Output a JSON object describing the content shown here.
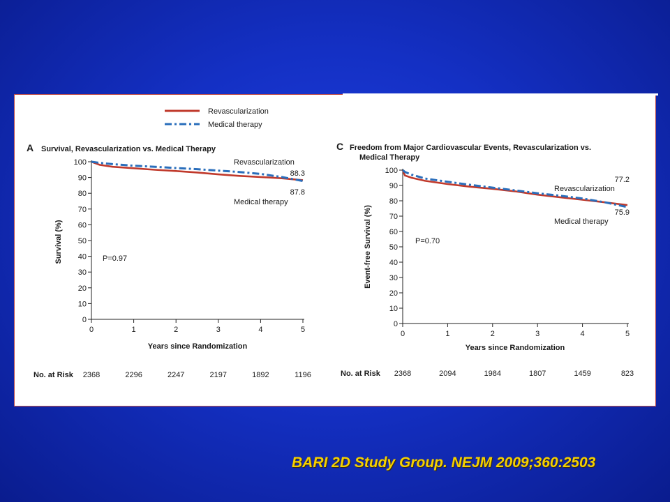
{
  "colors": {
    "revascularization": "#c0392b",
    "medical_therapy": "#2a6ebb",
    "background": "#1430c4",
    "citation": "#f5d000"
  },
  "legend": {
    "items": [
      {
        "label": "Revascularization",
        "style": "solid"
      },
      {
        "label": "Medical therapy",
        "style": "dashdot"
      }
    ]
  },
  "citation": "BARI 2D Study Group.  NEJM 2009;360:2503",
  "chart_data": [
    {
      "type": "line",
      "panel_letter": "A",
      "title": "Survival, Revascularization vs. Medical Therapy",
      "xlabel": "Years since Randomization",
      "ylabel": "Survival (%)",
      "xlim": [
        0,
        5
      ],
      "ylim": [
        0,
        100
      ],
      "xticks": [
        0,
        1,
        2,
        3,
        4,
        5
      ],
      "yticks": [
        0,
        10,
        20,
        30,
        40,
        50,
        60,
        70,
        80,
        90,
        100
      ],
      "pvalue": "P=0.97",
      "series": [
        {
          "name": "Revascularization",
          "end_label": "88.3",
          "x": [
            0,
            0.2,
            0.5,
            1,
            1.5,
            2,
            2.5,
            3,
            3.5,
            4,
            4.5,
            5
          ],
          "y": [
            100,
            98,
            96.8,
            95.9,
            94.9,
            94.1,
            93.2,
            92.0,
            91.0,
            90.3,
            89.5,
            88.3
          ]
        },
        {
          "name": "Medical therapy",
          "end_label": "87.8",
          "x": [
            0,
            0.2,
            0.5,
            1,
            1.5,
            2,
            2.5,
            3,
            3.5,
            4,
            4.5,
            5
          ],
          "y": [
            100,
            99.3,
            98.5,
            97.5,
            96.8,
            96.0,
            95.3,
            94.4,
            93.5,
            92.3,
            90.3,
            87.8
          ]
        }
      ],
      "annotations": {
        "upper": "Revascularization",
        "lower": "Medical therapy"
      },
      "risk_table": {
        "label": "No. at Risk",
        "values": [
          "2368",
          "2296",
          "2247",
          "2197",
          "1892",
          "1196"
        ]
      }
    },
    {
      "type": "line",
      "panel_letter": "C",
      "title_lines": [
        "Freedom from Major Cardiovascular Events, Revascularization vs.",
        "Medical Therapy"
      ],
      "xlabel": "Years since Randomization",
      "ylabel": "Event-free Survival (%)",
      "xlim": [
        0,
        5
      ],
      "ylim": [
        0,
        100
      ],
      "xticks": [
        0,
        1,
        2,
        3,
        4,
        5
      ],
      "yticks": [
        0,
        10,
        20,
        30,
        40,
        50,
        60,
        70,
        80,
        90,
        100
      ],
      "pvalue": "P=0.70",
      "series": [
        {
          "name": "Revascularization",
          "end_label": "77.2",
          "x": [
            0,
            0.05,
            0.2,
            0.5,
            1,
            1.5,
            2,
            2.5,
            3,
            3.5,
            4,
            4.5,
            5
          ],
          "y": [
            100,
            96.5,
            95.0,
            93.0,
            90.9,
            89.2,
            87.8,
            86.2,
            84.0,
            82.3,
            80.7,
            79.0,
            77.2
          ]
        },
        {
          "name": "Medical therapy",
          "end_label": "75.9",
          "x": [
            0,
            0.05,
            0.2,
            0.5,
            1,
            1.5,
            2,
            2.5,
            3,
            3.5,
            4,
            4.5,
            5
          ],
          "y": [
            100,
            98.8,
            97.0,
            94.5,
            92.4,
            90.4,
            88.6,
            86.8,
            84.9,
            83.3,
            81.5,
            79.0,
            75.9
          ]
        }
      ],
      "annotations": {
        "upper": "Revascularization",
        "lower": "Medical therapy"
      },
      "risk_table": {
        "label": "No. at Risk",
        "values": [
          "2368",
          "2094",
          "1984",
          "1807",
          "1459",
          "823"
        ]
      }
    }
  ]
}
